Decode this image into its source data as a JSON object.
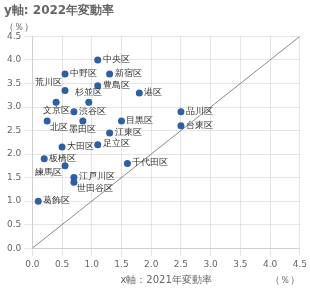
{
  "chart_data": {
    "type": "scatter",
    "title": "y軸: 2022年変動率",
    "xlabel": "x軸：2021年変動率",
    "xlabel_unit": "（％）",
    "ylabel": "（％）",
    "xlim": [
      0,
      4.5
    ],
    "ylim": [
      0,
      4.5
    ],
    "xticks": [
      {
        "value": 0,
        "label": "0.0"
      },
      0.5,
      {
        "value": 1,
        "label": "1.0"
      },
      1.5,
      {
        "value": 2,
        "label": "2.0"
      },
      2.5,
      {
        "value": 3,
        "label": "3.0"
      },
      3.5,
      {
        "value": 4,
        "label": "4.0"
      },
      4.5
    ],
    "yticks": [
      {
        "value": 0,
        "label": "0.0"
      },
      0.5,
      {
        "value": 1,
        "label": "1.0"
      },
      1.5,
      {
        "value": 2,
        "label": "2.0"
      },
      2.5,
      {
        "value": 3,
        "label": "3.0"
      },
      3.5,
      {
        "value": 4,
        "label": "4.0"
      },
      4.5
    ],
    "grid": true,
    "series": [
      {
        "type": "scatter",
        "color": "#2e5fa3",
        "x": [
          1.1,
          1.3,
          1.1,
          1.8,
          0.55,
          0.55,
          0.4,
          0.7,
          0.95,
          2.5,
          0.25,
          0.85,
          1.5,
          1.3,
          2.5,
          0.5,
          1.1,
          0.2,
          0.55,
          1.6,
          0.7,
          0.7,
          0.1
        ],
        "values": [
          4.0,
          3.7,
          3.45,
          3.3,
          3.7,
          3.35,
          3.1,
          2.9,
          3.1,
          2.9,
          2.7,
          2.7,
          2.7,
          2.45,
          2.6,
          2.15,
          2.2,
          1.9,
          1.75,
          1.8,
          1.5,
          1.4,
          1.0
        ],
        "point_labels": [
          "中央区",
          "新宿区",
          "豊島区",
          "港区",
          "中野区",
          "荒川区",
          "文京区",
          "渋谷区",
          "杉並区",
          "品川区",
          "北区",
          "墨田区",
          "目黒区",
          "江東区",
          "台東区",
          "大田区",
          "足立区",
          "板橋区",
          "練馬区",
          "千代田区",
          "江戸川区",
          "世田谷区",
          "葛飾区"
        ]
      },
      {
        "type": "line",
        "color": "#888888",
        "x": [
          0,
          4.5
        ],
        "values": [
          0,
          4.5
        ]
      }
    ]
  }
}
